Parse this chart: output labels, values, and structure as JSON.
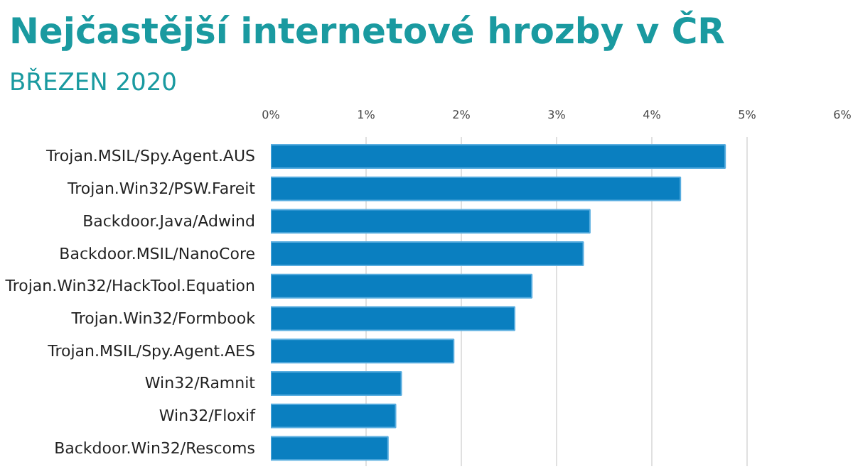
{
  "chart_data": {
    "type": "bar",
    "orientation": "horizontal",
    "title": "Nejčastější internetové hrozby v ČR",
    "subtitle": "BŘEZEN 2020",
    "categories": [
      "Trojan.MSIL/Spy.Agent.AUS",
      "Trojan.Win32/PSW.Fareit",
      "Backdoor.Java/Adwind",
      "Backdoor.MSIL/NanoCore",
      "Trojan.Win32/HackTool.Equation",
      "Trojan.Win32/Formbook",
      "Trojan.MSIL/Spy.Agent.AES",
      "Win32/Ramnit",
      "Win32/Floxif",
      "Backdoor.Win32/Rescoms"
    ],
    "values": [
      4.77,
      4.3,
      3.35,
      3.28,
      2.74,
      2.56,
      1.92,
      1.37,
      1.31,
      1.23
    ],
    "color": "#0a7fc0",
    "xlim": [
      0,
      6
    ],
    "xticks": [
      {
        "value": 0,
        "label": "0%"
      },
      {
        "value": 1,
        "label": "1%"
      },
      {
        "value": 2,
        "label": "2%"
      },
      {
        "value": 3,
        "label": "3%"
      },
      {
        "value": 4,
        "label": "4%"
      },
      {
        "value": 5,
        "label": "5%"
      },
      {
        "value": 6,
        "label": "6%"
      }
    ],
    "grid": "x"
  }
}
